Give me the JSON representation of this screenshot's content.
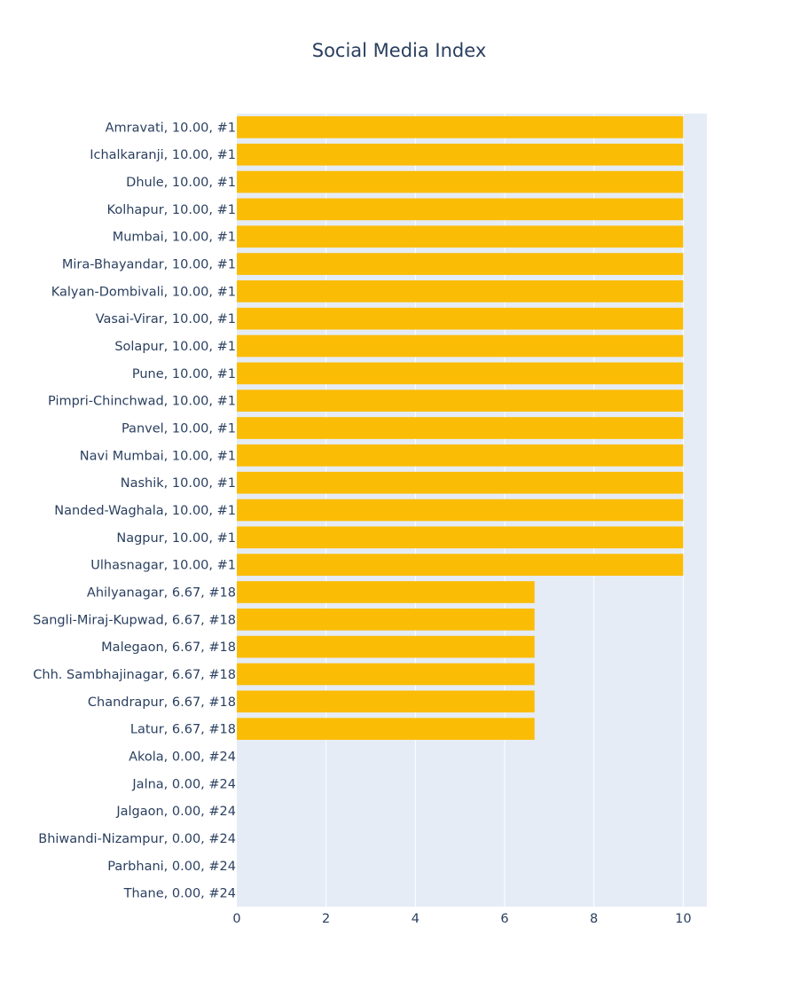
{
  "chart_data": {
    "type": "bar",
    "orientation": "horizontal",
    "title": "Social Media Index",
    "xlabel": "",
    "ylabel": "",
    "xlim": [
      0,
      10.53
    ],
    "grid": true,
    "bar_color": "#fbbc05",
    "plot_bg": "#e5ecf6",
    "text_color": "#2a3f5f",
    "x_ticks": [
      0,
      2,
      4,
      6,
      8,
      10
    ],
    "x_tick_labels": [
      "0",
      "2",
      "4",
      "6",
      "8",
      "10"
    ],
    "categories": [
      "Amravati, 10.00, #1",
      "Ichalkaranji, 10.00, #1",
      "Dhule, 10.00, #1",
      "Kolhapur, 10.00, #1",
      "Mumbai, 10.00, #1",
      "Mira-Bhayandar, 10.00, #1",
      "Kalyan-Dombivali, 10.00, #1",
      "Vasai-Virar, 10.00, #1",
      "Solapur, 10.00, #1",
      "Pune, 10.00, #1",
      "Pimpri-Chinchwad, 10.00, #1",
      "Panvel, 10.00, #1",
      "Navi Mumbai, 10.00, #1",
      "Nashik, 10.00, #1",
      "Nanded-Waghala, 10.00, #1",
      "Nagpur, 10.00, #1",
      "Ulhasnagar, 10.00, #1",
      "Ahilyanagar, 6.67, #18",
      "Sangli-Miraj-Kupwad, 6.67, #18",
      "Malegaon, 6.67, #18",
      "Chh. Sambhajinagar, 6.67, #18",
      "Chandrapur, 6.67, #18",
      "Latur, 6.67, #18",
      "Akola, 0.00, #24",
      "Jalna, 0.00, #24",
      "Jalgaon, 0.00, #24",
      "Bhiwandi-Nizampur, 0.00, #24",
      "Parbhani, 0.00, #24",
      "Thane, 0.00, #24"
    ],
    "values": [
      10,
      10,
      10,
      10,
      10,
      10,
      10,
      10,
      10,
      10,
      10,
      10,
      10,
      10,
      10,
      10,
      10,
      6.67,
      6.67,
      6.67,
      6.67,
      6.67,
      6.67,
      0,
      0,
      0,
      0,
      0,
      0
    ]
  }
}
